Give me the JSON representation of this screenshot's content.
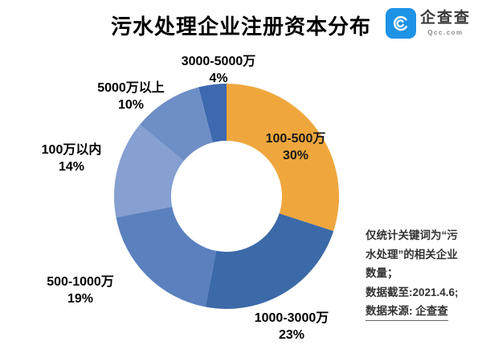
{
  "title": "污水处理企业注册资本分布",
  "logo": {
    "name": "企查查",
    "domain": "Qcc.com",
    "brand_color": "#1E93E6"
  },
  "chart_data": {
    "type": "pie",
    "donut": true,
    "title": "污水处理企业注册资本分布",
    "start_angle_deg": 0,
    "direction": "clockwise",
    "segments": [
      {
        "label": "100-500万",
        "value": 30,
        "pct_label": "30%",
        "color": "#EFA73D"
      },
      {
        "label": "1000-3000万",
        "value": 23,
        "pct_label": "23%",
        "color": "#3C69A8"
      },
      {
        "label": "500-1000万",
        "value": 19,
        "pct_label": "19%",
        "color": "#5B80BE"
      },
      {
        "label": "100万以内",
        "value": 14,
        "pct_label": "14%",
        "color": "#85A0D1"
      },
      {
        "label": "5000万以上",
        "value": 10,
        "pct_label": "10%",
        "color": "#6E8EC6"
      },
      {
        "label": "3000-5000万",
        "value": 4,
        "pct_label": "4%",
        "color": "#3E69AF"
      }
    ]
  },
  "note": {
    "lines": [
      "仅统计关键词为“污",
      "水处理”的相关企业",
      "数量；",
      "数据截至:2021.4.6;",
      "数据来源: 企查查"
    ]
  }
}
